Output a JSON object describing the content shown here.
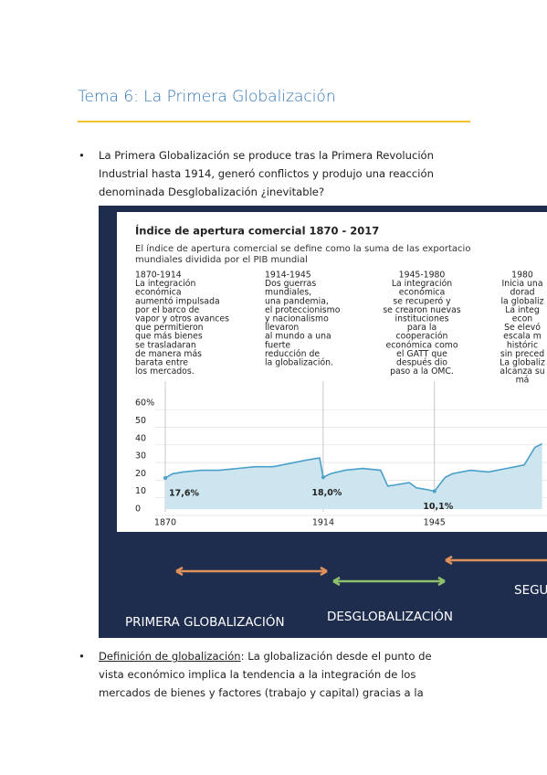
{
  "header": {
    "title": "Tema 6: La Primera Globalización"
  },
  "paragraphs": [
    {
      "lines": [
        "La Primera Globalización se produce tras la Primera Revolución",
        "Industrial hasta 1914, generó conflictos y produjo una reacción",
        "denominada Desglobalización ¿inevitable?"
      ]
    },
    {
      "term": "Definición de globalización",
      "lines": [
        ": La globalización desde el punto de",
        "vista económico implica la tendencia a la integración de los",
        "mercados de bienes y factores (trabajo y capital) gracias a la"
      ]
    }
  ],
  "figure": {
    "title": "Índice de apertura comercial 1870 - 2017",
    "subtitle": [
      "El índice de apertura comercial se define como la suma de las exportacio",
      "mundiales dividida por el PIB mundial"
    ],
    "columns": [
      [
        "1870-1914",
        "La integración",
        "económica",
        "aumentó impulsada",
        "por el barco de",
        "vapor y otros avances",
        "que permitieron",
        "que más bienes",
        "se trasladaran",
        "de manera más",
        "barata entre",
        "los mercados."
      ],
      [
        "1914-1945",
        "Dos guerras",
        "mundiales,",
        "una pandemia,",
        "el proteccionismo",
        "y nacionalismo",
        "llevaron",
        "al mundo a una",
        "fuerte",
        "reducción de",
        "la globalización."
      ],
      [
        "1945-1980",
        "La integración",
        "económica",
        "se recuperó y",
        "se crearon nuevas",
        "instituciones",
        "para la",
        "cooperación",
        "económica como",
        "el GATT que",
        "después dio",
        "paso a la OMC."
      ],
      [
        "1980",
        "Inicia una",
        "dorad",
        "la globaliz",
        "La integ",
        "econ",
        "Se elevó",
        "escala m",
        "históric",
        "sin preced",
        "La globaliz",
        "alcanza su",
        "má"
      ]
    ],
    "chart_data": {
      "type": "line",
      "color": "#4a9fc9",
      "fill": "#cde5ef",
      "x": [
        1870,
        1872,
        1875,
        1880,
        1885,
        1890,
        1895,
        1900,
        1905,
        1910,
        1913,
        1914,
        1916,
        1920,
        1925,
        1930,
        1932,
        1935,
        1938,
        1940,
        1943,
        1945,
        1948,
        1950,
        1955,
        1960,
        1965,
        1970,
        1973,
        1975
      ],
      "values": [
        17.6,
        20,
        21,
        22,
        22,
        23,
        24,
        24,
        26,
        28,
        29,
        18.0,
        20,
        22,
        23,
        22,
        13,
        14,
        15,
        12,
        11,
        10.1,
        18,
        20,
        22,
        21,
        23,
        25,
        35,
        37
      ],
      "value_labels": [
        "17,6%",
        null,
        null,
        null,
        null,
        null,
        null,
        null,
        null,
        null,
        null,
        "18,0%",
        null,
        null,
        null,
        null,
        null,
        null,
        null,
        null,
        null,
        "10,1%",
        null,
        null,
        null,
        null,
        null,
        null,
        null,
        null
      ],
      "xlim": [
        1867,
        1976
      ],
      "ylim": [
        0,
        60
      ],
      "yticks": [
        0,
        10,
        20,
        30,
        40,
        {
          "value": 60,
          "label": "60%"
        },
        50
      ],
      "xticks": [
        1870,
        1914,
        1945
      ]
    },
    "bands": [
      "PRIMERA GLOBALIZACIÓN",
      "DESGLOBALIZACIÓN",
      "SEGU"
    ]
  }
}
